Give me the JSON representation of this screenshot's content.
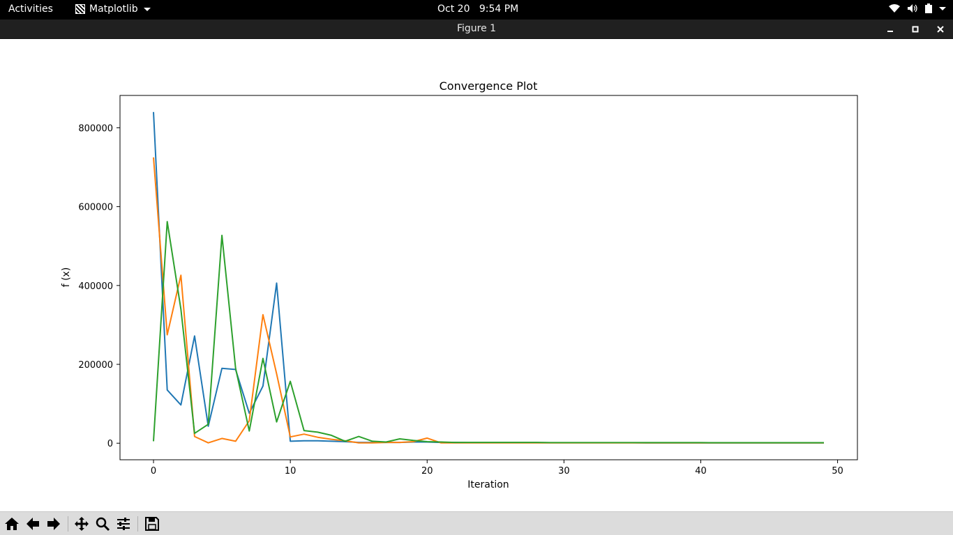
{
  "topbar": {
    "activities": "Activities",
    "app_name": "Matplotlib",
    "clock": "Oct 20   9:54 PM",
    "tray_icons": [
      "wifi-icon",
      "volume-icon",
      "battery-icon",
      "power-menu-icon"
    ]
  },
  "window": {
    "title": "Figure 1",
    "controls": [
      "minimize",
      "maximize",
      "close"
    ]
  },
  "toolbar": {
    "buttons": [
      "home",
      "back",
      "forward",
      "pan",
      "zoom",
      "configure-subplots",
      "save"
    ]
  },
  "chart_data": {
    "type": "line",
    "title": "Convergence Plot",
    "xlabel": "Iteration",
    "ylabel": "f (x)",
    "xlim": [
      -2.45,
      51.45
    ],
    "ylim": [
      -42000,
      882000
    ],
    "xticks": [
      0,
      10,
      20,
      30,
      40,
      50
    ],
    "yticks": [
      0,
      200000,
      400000,
      600000,
      800000
    ],
    "ytick_labels": [
      "0",
      "200000",
      "400000",
      "600000",
      "800000"
    ],
    "grid": false,
    "colors": [
      "#1f77b4",
      "#ff7f0e",
      "#2ca02c"
    ],
    "x": [
      0,
      1,
      2,
      3,
      4,
      5,
      6,
      7,
      8,
      9,
      10,
      11,
      12,
      13,
      14,
      15,
      16,
      17,
      18,
      19,
      20,
      21,
      22,
      23,
      24,
      25,
      26,
      27,
      28,
      29,
      30,
      31,
      32,
      33,
      34,
      35,
      36,
      37,
      38,
      39,
      40,
      41,
      42,
      43,
      44,
      45,
      46,
      47,
      48,
      49
    ],
    "series": [
      {
        "values": [
          840000,
          135000,
          97000,
          272000,
          43000,
          190000,
          187000,
          76000,
          145000,
          406000,
          5000,
          6000,
          6000,
          5000,
          4000,
          2000,
          2000,
          2000,
          2000,
          3000,
          3000,
          2000,
          2000,
          1500,
          1500,
          1500,
          1500,
          1500,
          1500,
          1200,
          1200,
          1200,
          1200,
          1200,
          1200,
          1200,
          1000,
          1000,
          1000,
          1000,
          1000,
          1000,
          1000,
          1000,
          1000,
          1000,
          1000,
          1000,
          1000,
          1000
        ]
      },
      {
        "values": [
          725000,
          275000,
          426000,
          17000,
          1000,
          12000,
          5000,
          57000,
          326000,
          176000,
          16000,
          23000,
          15000,
          10000,
          6000,
          1000,
          1000,
          2000,
          2000,
          4000,
          13000,
          1000,
          1000,
          1000,
          1000,
          1000,
          1000,
          1000,
          1000,
          1000,
          1000,
          1000,
          1000,
          1000,
          1000,
          1000,
          1000,
          1000,
          1000,
          1000,
          1000,
          1000,
          1000,
          1000,
          1000,
          1000,
          1000,
          1000,
          1000,
          1000
        ]
      },
      {
        "values": [
          5000,
          562000,
          340000,
          25000,
          48000,
          527000,
          190000,
          31000,
          215000,
          54000,
          157000,
          32000,
          28000,
          20000,
          5000,
          17000,
          5000,
          3000,
          11000,
          7000,
          4000,
          3000,
          2000,
          2000,
          2000,
          2000,
          2000,
          2000,
          2000,
          1500,
          1500,
          1500,
          1500,
          1500,
          1500,
          1500,
          1500,
          1500,
          1500,
          1500,
          1500,
          1200,
          1200,
          1200,
          1200,
          1200,
          1200,
          1200,
          1200,
          1200
        ]
      }
    ]
  }
}
